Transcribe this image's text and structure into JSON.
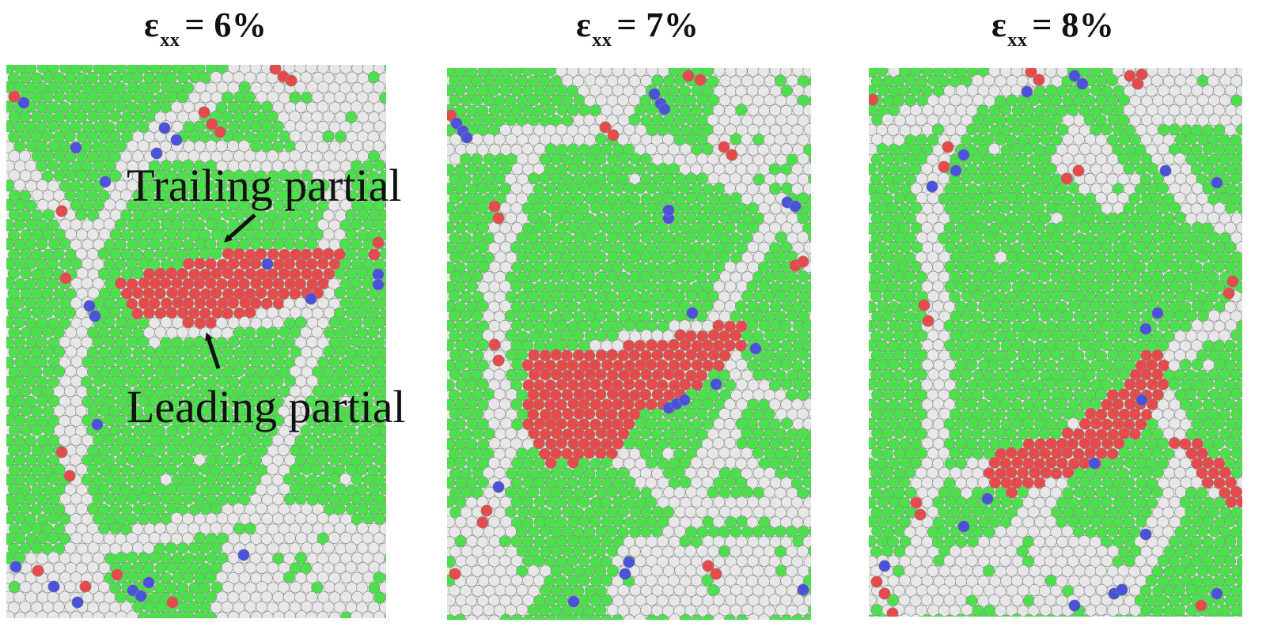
{
  "panels": [
    {
      "title_symbol": "ε",
      "title_subscript": "xx",
      "title_value": "= 6%"
    },
    {
      "title_symbol": "ε",
      "title_subscript": "xx",
      "title_value": "= 7%"
    },
    {
      "title_symbol": "ε",
      "title_subscript": "xx",
      "title_value": "= 8%"
    }
  ],
  "annotations": {
    "trailing": "Trailing partial",
    "leading": "Leading partial"
  },
  "colors": {
    "fcc": "#4ce04c",
    "hcp": "#e64b4b",
    "bcc": "#4a52d9",
    "other": "#e7e7e7",
    "atom_outline": "#8a8a8a"
  }
}
